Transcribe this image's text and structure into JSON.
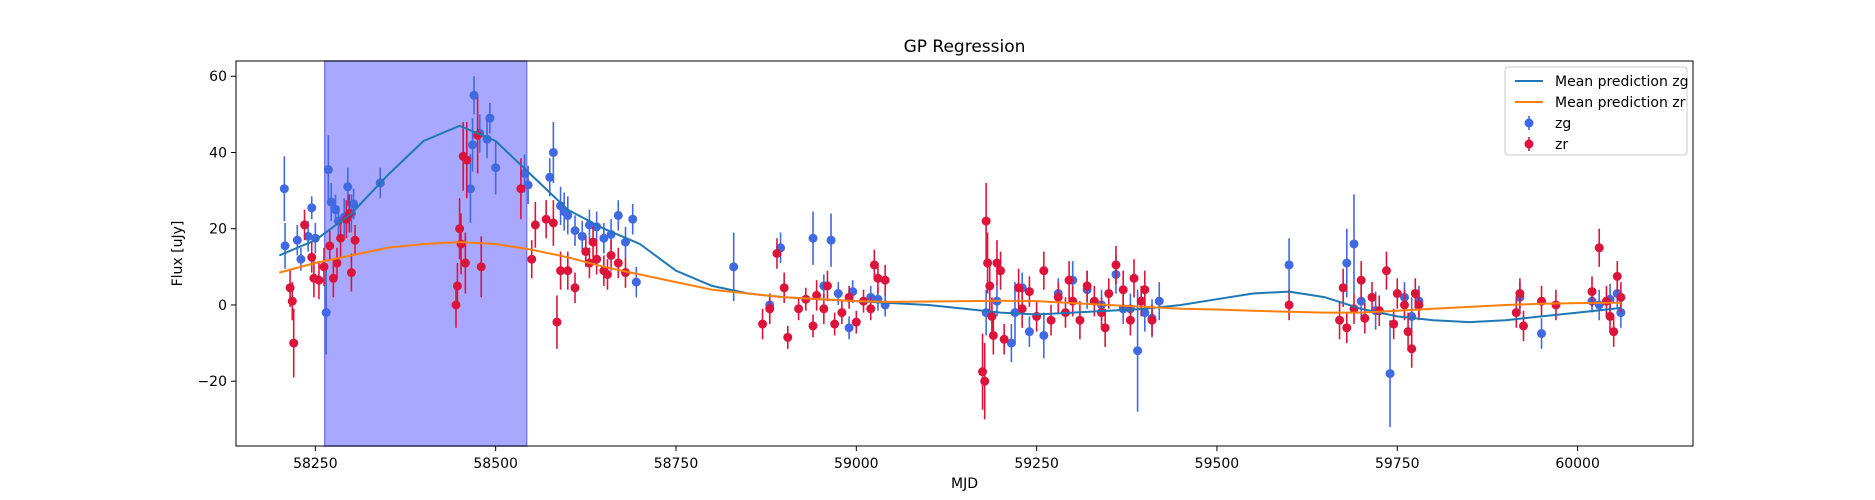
{
  "chart_data": {
    "type": "scatter",
    "title": "GP Regression",
    "xlabel": "MJD",
    "ylabel": "Flux [uJy]",
    "xlim": [
      58140,
      60160
    ],
    "ylim": [
      -37,
      64
    ],
    "x_ticks": [
      58250,
      58500,
      58750,
      59000,
      59250,
      59500,
      59750,
      60000
    ],
    "y_ticks": [
      -20,
      0,
      20,
      40,
      60
    ],
    "grid": false,
    "legend_position": "top-right",
    "shaded_region": {
      "x_start": 58263,
      "x_end": 58543,
      "color": "#a8a8ff"
    },
    "legend": [
      {
        "label": "Mean prediction zg",
        "kind": "line",
        "color": "#1f77b4"
      },
      {
        "label": "Mean prediction zr",
        "kind": "line",
        "color": "#ff7f0e"
      },
      {
        "label": "zg",
        "kind": "errorbar",
        "color": "#4169e1"
      },
      {
        "label": "zr",
        "kind": "errorbar",
        "color": "#dc143c"
      }
    ],
    "lines": [
      {
        "name": "Mean prediction zg",
        "color": "#1f77b4",
        "x": [
          58200,
          58250,
          58300,
          58350,
          58400,
          58450,
          58500,
          58550,
          58600,
          58650,
          58700,
          58750,
          58800,
          58850,
          58900,
          58950,
          59000,
          59050,
          59100,
          59150,
          59200,
          59250,
          59300,
          59350,
          59400,
          59450,
          59500,
          59550,
          59600,
          59650,
          59700,
          59750,
          59800,
          59850,
          59900,
          59950,
          60000,
          60050,
          60060
        ],
        "y": [
          13,
          17,
          24,
          34,
          43,
          47,
          43,
          34,
          25,
          20,
          16,
          9,
          5,
          3,
          2,
          1.5,
          1,
          0.5,
          0,
          -1,
          -2,
          -2.5,
          -2,
          -1.5,
          -1,
          0,
          1.5,
          3,
          3.5,
          2,
          -1,
          -3,
          -4,
          -4.5,
          -4,
          -3,
          -2,
          -1,
          -0.8
        ]
      },
      {
        "name": "Mean prediction zr",
        "color": "#ff7f0e",
        "x": [
          58200,
          58250,
          58300,
          58350,
          58400,
          58450,
          58500,
          58550,
          58600,
          58650,
          58700,
          58750,
          58800,
          58850,
          58900,
          58950,
          59000,
          59050,
          59100,
          59150,
          59200,
          59250,
          59300,
          59350,
          59400,
          59450,
          59500,
          59550,
          59600,
          59650,
          59700,
          59750,
          59800,
          59850,
          59900,
          59950,
          60000,
          60050,
          60060
        ],
        "y": [
          8.5,
          11,
          13,
          15,
          16,
          16.5,
          16,
          14.5,
          12.5,
          10,
          8,
          6,
          4,
          3,
          2,
          1.5,
          1,
          0.8,
          0.9,
          1,
          1.1,
          1,
          0.5,
          0,
          -0.5,
          -1,
          -1.2,
          -1.5,
          -1.8,
          -2,
          -2,
          -1.5,
          -1,
          -0.5,
          0,
          0.3,
          0.5,
          0.6,
          0.6
        ]
      }
    ],
    "series": [
      {
        "name": "zg",
        "color": "#4169e1",
        "points": [
          [
            58207,
            30.5,
            8.5
          ],
          [
            58208,
            15.5,
            6
          ],
          [
            58225,
            17,
            4
          ],
          [
            58230,
            12,
            3
          ],
          [
            58240,
            18,
            4
          ],
          [
            58245,
            25.5,
            3
          ],
          [
            58250,
            17.5,
            4
          ],
          [
            58265,
            -2,
            11
          ],
          [
            58268,
            35.5,
            9
          ],
          [
            58272,
            27,
            5
          ],
          [
            58278,
            25,
            4
          ],
          [
            58282,
            22,
            4
          ],
          [
            58290,
            23,
            5
          ],
          [
            58295,
            31,
            5
          ],
          [
            58300,
            24,
            5
          ],
          [
            58303,
            26.5,
            4
          ],
          [
            58340,
            32,
            4
          ],
          [
            58465,
            30.5,
            9
          ],
          [
            58468,
            42,
            7
          ],
          [
            58470,
            55,
            5
          ],
          [
            58478,
            45,
            5
          ],
          [
            58488,
            43.5,
            5
          ],
          [
            58492,
            49,
            4
          ],
          [
            58500,
            36,
            7
          ],
          [
            58540,
            34.5,
            5
          ],
          [
            58545,
            31.5,
            5
          ],
          [
            58575,
            33.5,
            5
          ],
          [
            58580,
            40,
            8
          ],
          [
            58590,
            26,
            5
          ],
          [
            58595,
            24.5,
            5
          ],
          [
            58600,
            23.5,
            5
          ],
          [
            58610,
            19.5,
            4
          ],
          [
            58620,
            18,
            4
          ],
          [
            58630,
            21,
            4
          ],
          [
            58640,
            20.5,
            4
          ],
          [
            58650,
            17.5,
            4
          ],
          [
            58660,
            18.5,
            4
          ],
          [
            58670,
            23.5,
            4
          ],
          [
            58680,
            16.5,
            4
          ],
          [
            58690,
            22.5,
            4
          ],
          [
            58695,
            6,
            4
          ],
          [
            58830,
            10,
            9
          ],
          [
            58880,
            0,
            3
          ],
          [
            58895,
            15,
            4
          ],
          [
            58940,
            17.5,
            7
          ],
          [
            58955,
            5,
            3
          ],
          [
            58965,
            17,
            7
          ],
          [
            58975,
            3,
            3
          ],
          [
            58990,
            -6,
            3
          ],
          [
            58995,
            3.5,
            3
          ],
          [
            59020,
            2,
            3
          ],
          [
            59030,
            1.5,
            3
          ],
          [
            59040,
            0,
            3
          ],
          [
            59180,
            -2,
            6
          ],
          [
            59195,
            1,
            4
          ],
          [
            59215,
            -10,
            5
          ],
          [
            59220,
            -2,
            8
          ],
          [
            59230,
            4.5,
            4
          ],
          [
            59240,
            -7,
            4
          ],
          [
            59260,
            -8,
            6
          ],
          [
            59280,
            3,
            4
          ],
          [
            59300,
            6.5,
            5
          ],
          [
            59320,
            4,
            5
          ],
          [
            59340,
            0,
            4
          ],
          [
            59360,
            8,
            5
          ],
          [
            59370,
            -1,
            4
          ],
          [
            59380,
            -1,
            4
          ],
          [
            59390,
            -12,
            16
          ],
          [
            59400,
            -2,
            5
          ],
          [
            59410,
            -3.5,
            5
          ],
          [
            59420,
            1,
            5
          ],
          [
            59600,
            10.5,
            7
          ],
          [
            59680,
            11,
            9
          ],
          [
            59690,
            16,
            13
          ],
          [
            59700,
            1,
            5
          ],
          [
            59720,
            -1.5,
            5
          ],
          [
            59740,
            -18,
            14
          ],
          [
            59760,
            2,
            4
          ],
          [
            59770,
            -3,
            5
          ],
          [
            59780,
            1,
            4
          ],
          [
            59920,
            2,
            4
          ],
          [
            59950,
            -7.5,
            4
          ],
          [
            60020,
            1,
            3
          ],
          [
            60030,
            0,
            4
          ],
          [
            60045,
            1.5,
            4
          ],
          [
            60055,
            3,
            4
          ],
          [
            60060,
            -2,
            4
          ]
        ]
      },
      {
        "name": "zr",
        "color": "#dc143c",
        "points": [
          [
            58215,
            4.5,
            5
          ],
          [
            58218,
            1,
            5
          ],
          [
            58220,
            -10,
            9
          ],
          [
            58235,
            21,
            4
          ],
          [
            58245,
            12.5,
            4
          ],
          [
            58248,
            7,
            5
          ],
          [
            58255,
            6.5,
            5
          ],
          [
            58262,
            10,
            5
          ],
          [
            58270,
            15.5,
            4
          ],
          [
            58275,
            7,
            5
          ],
          [
            58280,
            11,
            4
          ],
          [
            58285,
            17.5,
            5
          ],
          [
            58293,
            22.5,
            5
          ],
          [
            58297,
            24,
            5
          ],
          [
            58300,
            8.5,
            5
          ],
          [
            58305,
            17,
            4
          ],
          [
            58445,
            0,
            6
          ],
          [
            58447,
            5,
            6
          ],
          [
            58450,
            20,
            8
          ],
          [
            58452,
            16,
            8
          ],
          [
            58455,
            39,
            9
          ],
          [
            58458,
            11,
            8
          ],
          [
            58460,
            38,
            10
          ],
          [
            58475,
            44.5,
            10
          ],
          [
            58480,
            10,
            8
          ],
          [
            58535,
            30.5,
            8
          ],
          [
            58550,
            12,
            5
          ],
          [
            58555,
            21,
            6
          ],
          [
            58570,
            22.5,
            5
          ],
          [
            58580,
            21.5,
            6
          ],
          [
            58585,
            -4.5,
            7
          ],
          [
            58590,
            9,
            5
          ],
          [
            58600,
            9,
            5
          ],
          [
            58610,
            4.5,
            4
          ],
          [
            58625,
            14,
            4
          ],
          [
            58630,
            11,
            4
          ],
          [
            58635,
            16.5,
            4
          ],
          [
            58640,
            12,
            4
          ],
          [
            58650,
            9,
            4
          ],
          [
            58655,
            8,
            4
          ],
          [
            58660,
            13,
            4
          ],
          [
            58670,
            11,
            4
          ],
          [
            58680,
            8.5,
            4
          ],
          [
            58870,
            -5,
            4
          ],
          [
            58880,
            -1,
            4
          ],
          [
            58890,
            13.5,
            4
          ],
          [
            58900,
            4.5,
            4
          ],
          [
            58905,
            -8.5,
            3
          ],
          [
            58920,
            -1,
            3
          ],
          [
            58930,
            1.5,
            3
          ],
          [
            58940,
            -5.5,
            3
          ],
          [
            58945,
            2.5,
            4
          ],
          [
            58955,
            -1,
            4
          ],
          [
            58960,
            5,
            4
          ],
          [
            58970,
            -5,
            3
          ],
          [
            58980,
            -2,
            3
          ],
          [
            58990,
            2,
            3
          ],
          [
            59000,
            -4.5,
            3
          ],
          [
            59010,
            1,
            3
          ],
          [
            59020,
            -1,
            3
          ],
          [
            59025,
            10.5,
            4
          ],
          [
            59030,
            7,
            4
          ],
          [
            59040,
            6.5,
            4
          ],
          [
            59175,
            -17.5,
            10
          ],
          [
            59178,
            -20,
            10
          ],
          [
            59180,
            22,
            10
          ],
          [
            59182,
            11,
            8
          ],
          [
            59185,
            5,
            7
          ],
          [
            59188,
            -3,
            5
          ],
          [
            59190,
            -8,
            5
          ],
          [
            59195,
            11,
            6
          ],
          [
            59200,
            9,
            5
          ],
          [
            59205,
            -9,
            4
          ],
          [
            59225,
            4.5,
            5
          ],
          [
            59230,
            -1,
            5
          ],
          [
            59240,
            3.5,
            4
          ],
          [
            59250,
            -3,
            4
          ],
          [
            59260,
            9,
            5
          ],
          [
            59270,
            -4,
            4
          ],
          [
            59280,
            2,
            4
          ],
          [
            59290,
            -2,
            4
          ],
          [
            59295,
            6.5,
            5
          ],
          [
            59300,
            1,
            4
          ],
          [
            59310,
            -4,
            5
          ],
          [
            59320,
            5,
            4
          ],
          [
            59330,
            1,
            4
          ],
          [
            59340,
            -2,
            4
          ],
          [
            59345,
            -6,
            5
          ],
          [
            59350,
            3,
            4
          ],
          [
            59360,
            10.5,
            5
          ],
          [
            59370,
            4,
            5
          ],
          [
            59380,
            -4,
            4
          ],
          [
            59385,
            7,
            5
          ],
          [
            59395,
            1,
            4
          ],
          [
            59400,
            4,
            5
          ],
          [
            59410,
            -4,
            4
          ],
          [
            59600,
            0,
            4
          ],
          [
            59670,
            -4,
            5
          ],
          [
            59675,
            4.5,
            5
          ],
          [
            59680,
            -6,
            4
          ],
          [
            59690,
            -1,
            4
          ],
          [
            59700,
            6.5,
            5
          ],
          [
            59705,
            -3.5,
            4
          ],
          [
            59715,
            2,
            4
          ],
          [
            59725,
            -1.5,
            4
          ],
          [
            59735,
            9,
            5
          ],
          [
            59745,
            -5,
            4
          ],
          [
            59750,
            3,
            4
          ],
          [
            59760,
            0,
            4
          ],
          [
            59765,
            -7,
            5
          ],
          [
            59770,
            -11.5,
            5
          ],
          [
            59775,
            3,
            4
          ],
          [
            59780,
            0,
            4
          ],
          [
            59915,
            -2,
            4
          ],
          [
            59920,
            3,
            4
          ],
          [
            59925,
            -5.5,
            4
          ],
          [
            59950,
            1,
            4
          ],
          [
            59970,
            0,
            4
          ],
          [
            60020,
            3.5,
            4
          ],
          [
            60030,
            15,
            5
          ],
          [
            60040,
            1,
            4
          ],
          [
            60045,
            -3,
            4
          ],
          [
            60050,
            -7,
            4
          ],
          [
            60055,
            7.5,
            4
          ],
          [
            60060,
            2,
            4
          ]
        ]
      }
    ]
  }
}
